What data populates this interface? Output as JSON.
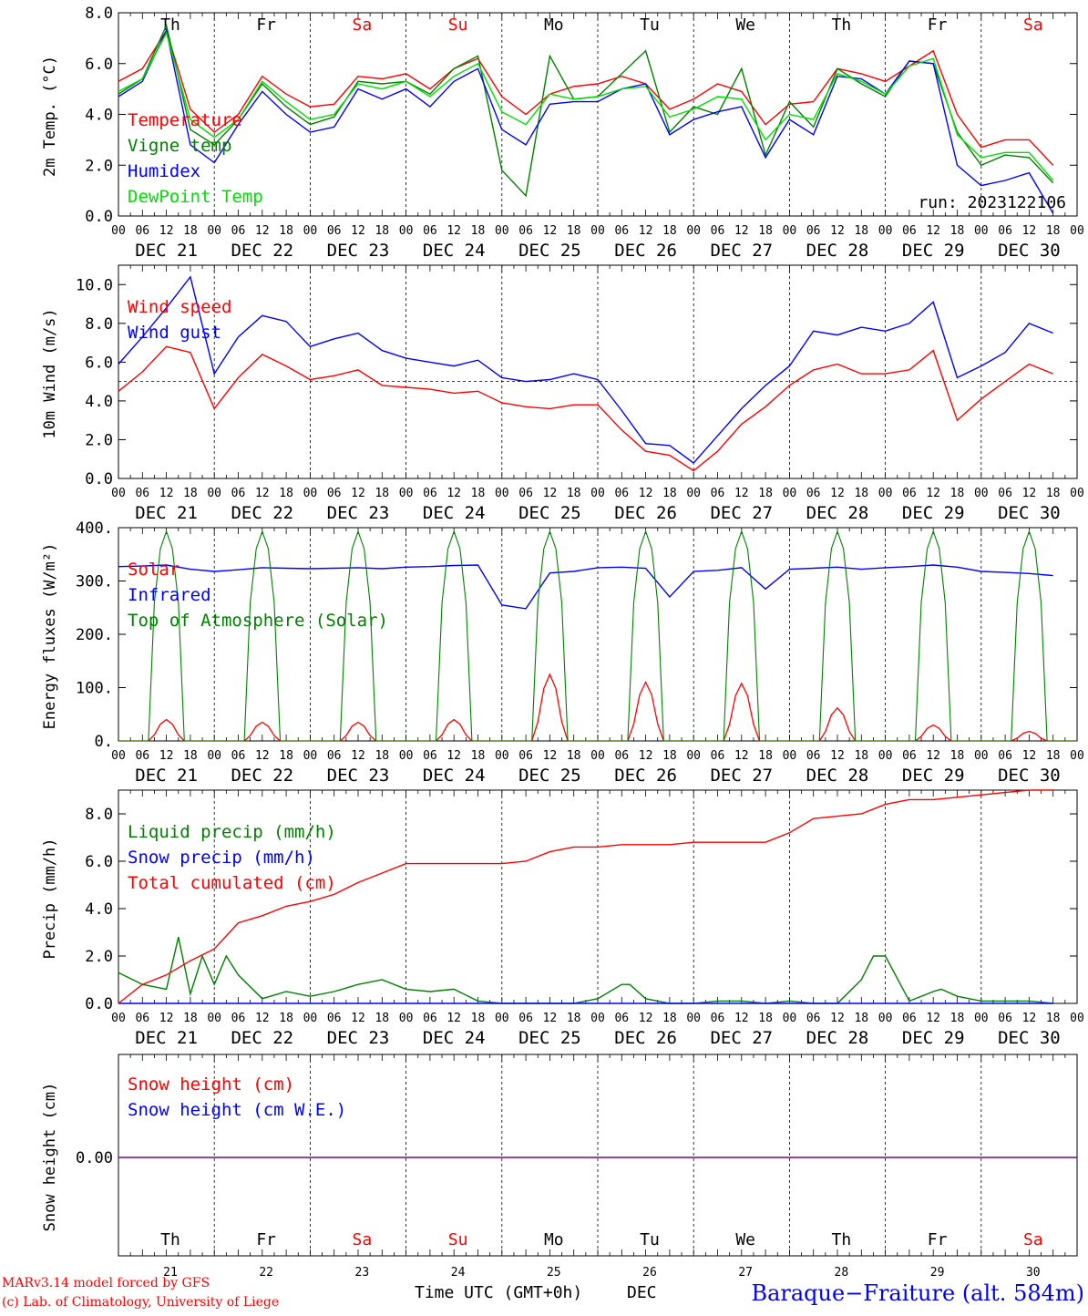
{
  "colors": {
    "red": "#ff0000",
    "green": "#008000",
    "blue": "#0000ff",
    "lime": "#00e000",
    "purple": "#800080"
  },
  "days": {
    "names": [
      "Th",
      "Fr",
      "Sa",
      "Su",
      "Mo",
      "Tu",
      "We",
      "Th",
      "Fr",
      "Sa"
    ],
    "weekend": [
      false,
      false,
      true,
      true,
      false,
      false,
      false,
      false,
      false,
      true
    ],
    "dates": [
      "DEC 21",
      "DEC 22",
      "DEC 23",
      "DEC 24",
      "DEC 25",
      "DEC 26",
      "DEC 27",
      "DEC 28",
      "DEC 29",
      "DEC 30"
    ],
    "numbers": [
      "21",
      "22",
      "23",
      "24",
      "25",
      "26",
      "27",
      "28",
      "29",
      "30"
    ],
    "hour_ticks": [
      "00",
      "06",
      "12",
      "18"
    ],
    "last_tick": "00"
  },
  "footer": {
    "credit1": "MARv3.14 model forced by GFS",
    "credit2": "(c) Lab. of Climatology, University of Liege",
    "xlabel": "Time UTC (GMT+0h)",
    "month": "DEC",
    "station": "Baraque−Fraiture (alt. 584m)"
  },
  "chart_data": [
    {
      "type": "line",
      "ylabel": "2m Temp. (°C)",
      "ylim": [
        0,
        8
      ],
      "yticks": [
        "0.0",
        "2.0",
        "4.0",
        "6.0",
        "8.0"
      ],
      "annotation": "run: 2023122106",
      "series": [
        {
          "name": "Temperature",
          "color": "red",
          "x": [
            0,
            6,
            12,
            18,
            24,
            30,
            36,
            42,
            48,
            54,
            60,
            66,
            72,
            78,
            84,
            90,
            96,
            102,
            108,
            114,
            120,
            126,
            132,
            138,
            144,
            150,
            156,
            162,
            168,
            174,
            180,
            186,
            192,
            198,
            204,
            210,
            216,
            222,
            228,
            234
          ],
          "values": [
            5.3,
            5.8,
            7.3,
            4.2,
            3.3,
            4.0,
            5.5,
            4.8,
            4.3,
            4.4,
            5.5,
            5.4,
            5.6,
            5.0,
            5.8,
            6.2,
            4.7,
            4.0,
            4.8,
            5.1,
            5.2,
            5.5,
            5.2,
            4.2,
            4.6,
            5.2,
            4.9,
            3.6,
            4.4,
            4.5,
            5.8,
            5.6,
            5.3,
            5.9,
            6.5,
            4.0,
            2.7,
            3.0,
            3.0,
            2.0
          ]
        },
        {
          "name": "Vigne temp",
          "color": "green",
          "x": [
            0,
            6,
            12,
            18,
            24,
            30,
            36,
            42,
            48,
            54,
            60,
            66,
            72,
            78,
            84,
            90,
            96,
            102,
            108,
            114,
            120,
            126,
            132,
            138,
            144,
            150,
            156,
            162,
            168,
            174,
            180,
            186,
            192,
            198,
            204,
            210,
            216,
            222,
            228,
            234
          ],
          "values": [
            4.8,
            5.4,
            7.5,
            3.4,
            2.8,
            3.8,
            5.2,
            4.3,
            3.6,
            3.9,
            5.3,
            5.2,
            5.3,
            4.8,
            5.8,
            6.3,
            1.8,
            0.8,
            6.3,
            4.6,
            4.7,
            5.6,
            6.5,
            3.3,
            4.3,
            4.0,
            5.8,
            2.4,
            4.5,
            3.5,
            5.8,
            5.2,
            4.7,
            6.1,
            6.0,
            3.3,
            2.0,
            2.4,
            2.3,
            1.3
          ]
        },
        {
          "name": "Humidex",
          "color": "blue",
          "x": [
            0,
            6,
            12,
            18,
            24,
            30,
            36,
            42,
            48,
            54,
            60,
            66,
            72,
            78,
            84,
            90,
            96,
            102,
            108,
            114,
            120,
            126,
            132,
            138,
            144,
            150,
            156,
            162,
            168,
            174,
            180,
            186,
            192,
            198,
            204,
            210,
            216,
            222,
            228,
            234
          ],
          "values": [
            4.7,
            5.3,
            7.3,
            2.8,
            2.1,
            3.6,
            4.9,
            4.0,
            3.3,
            3.5,
            5.0,
            4.6,
            5.0,
            4.3,
            5.3,
            5.8,
            3.4,
            2.8,
            4.4,
            4.5,
            4.5,
            5.0,
            5.2,
            3.2,
            3.8,
            4.1,
            4.3,
            2.3,
            3.8,
            3.2,
            5.5,
            5.4,
            4.8,
            6.1,
            6.0,
            2.0,
            1.2,
            1.4,
            1.7,
            0.1
          ]
        },
        {
          "name": "DewPoint Temp",
          "color": "lime",
          "x": [
            0,
            6,
            12,
            18,
            24,
            30,
            36,
            42,
            48,
            54,
            60,
            66,
            72,
            78,
            84,
            90,
            96,
            102,
            108,
            114,
            120,
            126,
            132,
            138,
            144,
            150,
            156,
            162,
            168,
            174,
            180,
            186,
            192,
            198,
            204,
            210,
            216,
            222,
            228,
            234
          ],
          "values": [
            4.9,
            5.4,
            7.2,
            3.8,
            3.1,
            3.8,
            5.3,
            4.5,
            3.8,
            4.0,
            5.2,
            5.0,
            5.3,
            4.7,
            5.5,
            6.0,
            4.1,
            3.6,
            4.8,
            4.6,
            4.7,
            5.0,
            5.1,
            3.9,
            4.2,
            4.7,
            4.6,
            3.0,
            4.0,
            3.8,
            5.6,
            5.3,
            4.8,
            5.9,
            6.2,
            3.2,
            2.3,
            2.5,
            2.5,
            1.4
          ]
        }
      ]
    },
    {
      "type": "line",
      "ylabel": "10m Wind (m/s)",
      "ylim": [
        0,
        11
      ],
      "yticks": [
        "0.0",
        "2.0",
        "4.0",
        "6.0",
        "8.0",
        "10.0"
      ],
      "reference_line": 5.0,
      "series": [
        {
          "name": "Wind speed",
          "color": "red",
          "x": [
            0,
            6,
            12,
            18,
            24,
            30,
            36,
            42,
            48,
            54,
            60,
            66,
            72,
            78,
            84,
            90,
            96,
            102,
            108,
            114,
            120,
            126,
            132,
            138,
            144,
            150,
            156,
            162,
            168,
            174,
            180,
            186,
            192,
            198,
            204,
            210,
            216,
            222,
            228,
            234
          ],
          "values": [
            4.5,
            5.5,
            6.8,
            6.5,
            3.6,
            5.2,
            6.4,
            5.8,
            5.1,
            5.3,
            5.6,
            4.8,
            4.7,
            4.6,
            4.4,
            4.5,
            3.9,
            3.7,
            3.6,
            3.8,
            3.8,
            2.5,
            1.4,
            1.2,
            0.4,
            1.4,
            2.8,
            3.7,
            4.8,
            5.6,
            5.9,
            5.4,
            5.4,
            5.6,
            6.6,
            3.0,
            4.1,
            5.0,
            5.9,
            5.4
          ]
        },
        {
          "name": "Wind gust",
          "color": "blue",
          "x": [
            0,
            6,
            12,
            18,
            24,
            30,
            36,
            42,
            48,
            54,
            60,
            66,
            72,
            78,
            84,
            90,
            96,
            102,
            108,
            114,
            120,
            126,
            132,
            138,
            144,
            150,
            156,
            162,
            168,
            174,
            180,
            186,
            192,
            198,
            204,
            210,
            216,
            222,
            228,
            234
          ],
          "values": [
            5.9,
            7.3,
            8.8,
            10.4,
            5.4,
            7.3,
            8.4,
            8.1,
            6.8,
            7.2,
            7.5,
            6.6,
            6.2,
            6.0,
            5.8,
            6.1,
            5.2,
            5.0,
            5.1,
            5.4,
            5.1,
            3.5,
            1.8,
            1.7,
            0.8,
            2.2,
            3.6,
            4.8,
            5.8,
            7.6,
            7.4,
            7.8,
            7.6,
            8.0,
            9.1,
            5.2,
            5.8,
            6.5,
            8.0,
            7.5
          ]
        }
      ]
    },
    {
      "type": "line",
      "ylabel": "Energy fluxes (W/m²)",
      "ylim": [
        0,
        400
      ],
      "yticks": [
        "0.",
        "100.",
        "200.",
        "300.",
        "400."
      ],
      "series": [
        {
          "name": "Solar",
          "color": "red",
          "daily_peaks": [
            40,
            35,
            35,
            40,
            125,
            110,
            108,
            62,
            30,
            18
          ]
        },
        {
          "name": "Infrared",
          "color": "blue",
          "x": [
            0,
            6,
            12,
            18,
            24,
            30,
            36,
            42,
            48,
            54,
            60,
            66,
            72,
            78,
            84,
            90,
            96,
            102,
            108,
            114,
            120,
            126,
            132,
            138,
            144,
            150,
            156,
            162,
            168,
            174,
            180,
            186,
            192,
            198,
            204,
            210,
            216,
            222,
            228,
            234
          ],
          "values": [
            327,
            328,
            330,
            322,
            318,
            321,
            325,
            324,
            323,
            324,
            325,
            323,
            326,
            327,
            329,
            330,
            255,
            248,
            315,
            318,
            325,
            326,
            324,
            270,
            318,
            320,
            325,
            285,
            322,
            324,
            326,
            322,
            325,
            327,
            330,
            326,
            318,
            316,
            314,
            310
          ]
        },
        {
          "name": "Top of Atmosphere (Solar)",
          "color": "green",
          "daily_peak": 393,
          "sunrise_hour": 7.5,
          "sunset_hour": 16.5
        }
      ]
    },
    {
      "type": "line",
      "ylabel": "Precip (mm/h)",
      "ylim": [
        0,
        9
      ],
      "yticks": [
        "0.0",
        "2.0",
        "4.0",
        "6.0",
        "8.0"
      ],
      "series": [
        {
          "name": "Liquid precip (mm/h)",
          "color": "green",
          "x": [
            0,
            6,
            12,
            15,
            18,
            21,
            24,
            27,
            30,
            36,
            42,
            48,
            54,
            60,
            66,
            72,
            78,
            84,
            90,
            96,
            102,
            108,
            114,
            120,
            126,
            128,
            132,
            138,
            144,
            150,
            156,
            162,
            168,
            174,
            180,
            186,
            189,
            192,
            198,
            204,
            206,
            210,
            216,
            222,
            228,
            234
          ],
          "values": [
            1.3,
            0.8,
            0.6,
            2.8,
            0.4,
            2.0,
            0.8,
            2.0,
            1.2,
            0.2,
            0.5,
            0.3,
            0.5,
            0.8,
            1.0,
            0.6,
            0.5,
            0.6,
            0.1,
            0.0,
            0.0,
            0.0,
            0.0,
            0.2,
            0.8,
            0.8,
            0.2,
            0.0,
            0.0,
            0.1,
            0.1,
            0.0,
            0.1,
            0.0,
            0.0,
            1.0,
            2.0,
            2.0,
            0.1,
            0.5,
            0.6,
            0.3,
            0.1,
            0.1,
            0.1,
            0.0
          ]
        },
        {
          "name": "Snow precip (mm/h)",
          "color": "blue",
          "x": [
            0,
            234
          ],
          "values": [
            0.0,
            0.0
          ]
        },
        {
          "name": "Total cumulated (cm)",
          "color": "red",
          "x": [
            0,
            6,
            12,
            18,
            24,
            30,
            36,
            42,
            48,
            54,
            60,
            66,
            72,
            78,
            84,
            90,
            96,
            102,
            108,
            114,
            120,
            126,
            132,
            138,
            144,
            150,
            156,
            162,
            168,
            174,
            180,
            186,
            192,
            198,
            204,
            210,
            216,
            222,
            228,
            234
          ],
          "values": [
            0.0,
            0.8,
            1.2,
            1.8,
            2.3,
            3.4,
            3.7,
            4.1,
            4.3,
            4.6,
            5.1,
            5.5,
            5.9,
            5.9,
            5.9,
            5.9,
            5.9,
            6.0,
            6.4,
            6.6,
            6.6,
            6.7,
            6.7,
            6.7,
            6.8,
            6.8,
            6.8,
            6.8,
            7.2,
            7.8,
            7.9,
            8.0,
            8.4,
            8.6,
            8.6,
            8.7,
            8.8,
            8.9,
            9.0,
            9.0
          ]
        }
      ]
    },
    {
      "type": "line",
      "ylabel": "Snow height (cm)",
      "yticks": [
        "0.00"
      ],
      "series": [
        {
          "name": "Snow height (cm)",
          "color": "red",
          "x": [
            0,
            240
          ],
          "values": [
            0,
            0
          ]
        },
        {
          "name": "Snow height (cm W.E.)",
          "color": "blue",
          "x": [
            0,
            240
          ],
          "values": [
            0,
            0
          ]
        }
      ]
    }
  ]
}
